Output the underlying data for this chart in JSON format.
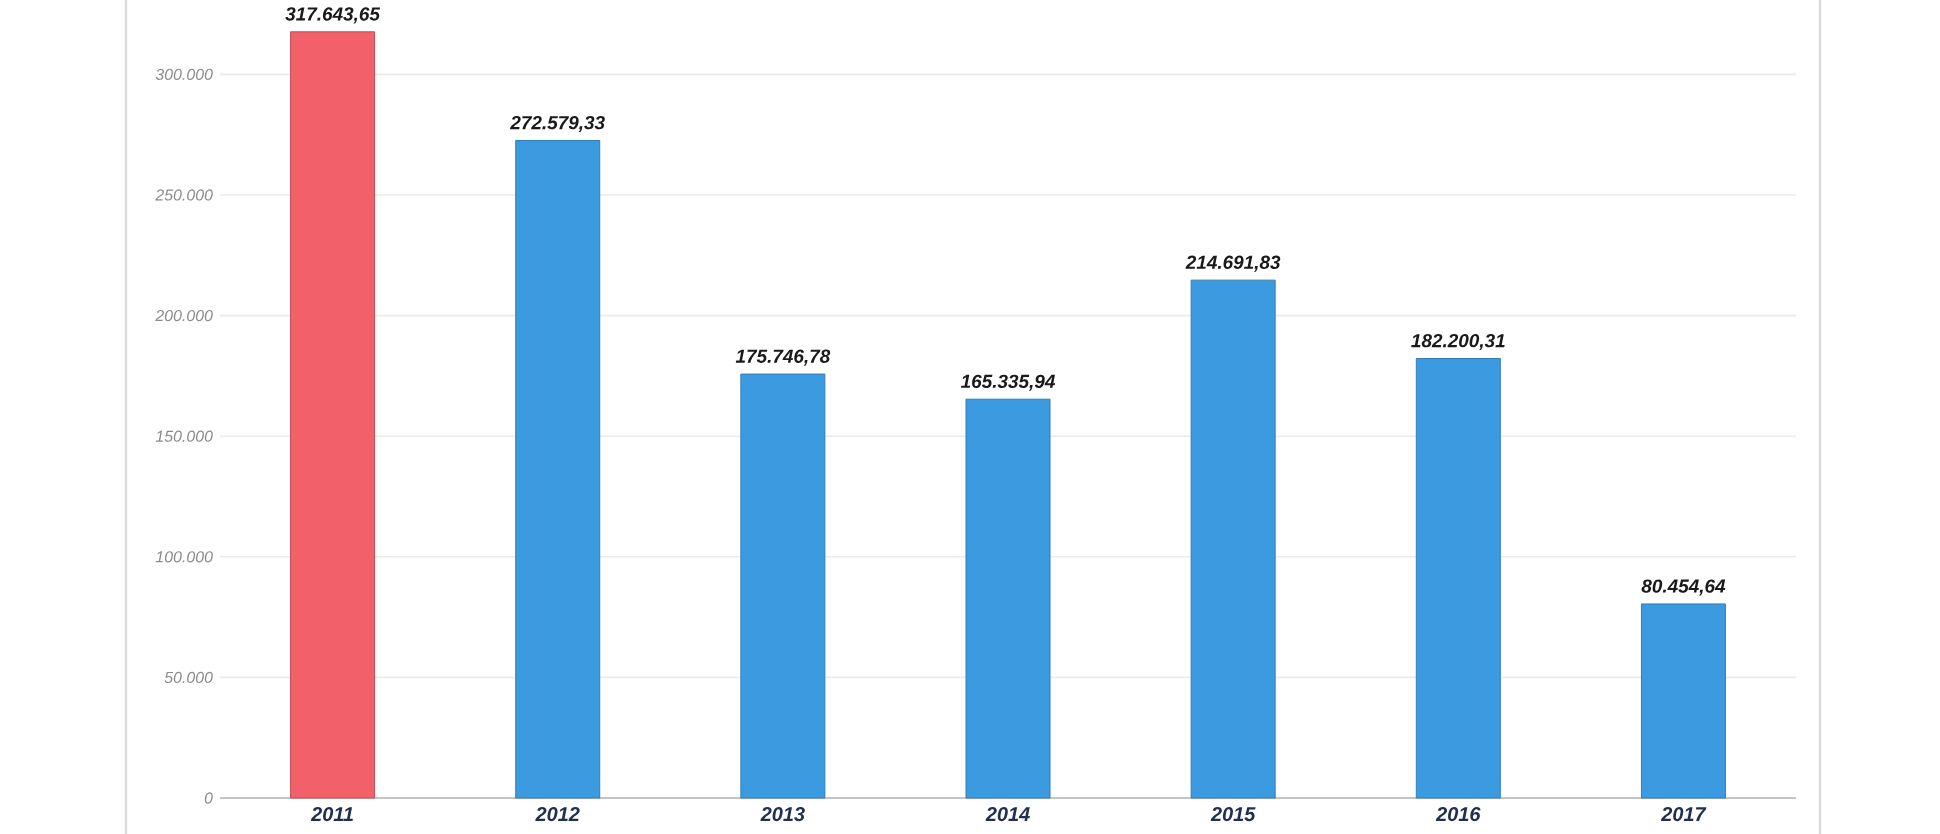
{
  "chart_data": {
    "type": "bar",
    "categories": [
      "2011",
      "2012",
      "2013",
      "2014",
      "2015",
      "2016",
      "2017"
    ],
    "values": [
      317643.65,
      272579.33,
      175746.78,
      165335.94,
      214691.83,
      182200.31,
      80454.64
    ],
    "colors": [
      "#f2606a",
      "#3c9be0",
      "#3c9be0",
      "#3c9be0",
      "#3c9be0",
      "#3c9be0",
      "#3c9be0"
    ],
    "value_labels": [
      "317.643,65",
      "272.579,33",
      "175.746,78",
      "165.335,94",
      "214.691,83",
      "182.200,31",
      "80.454,64"
    ],
    "ylim": [
      0,
      330000
    ],
    "yticks": [
      0,
      {
        "value": 50000,
        "label": "50.000"
      },
      {
        "value": 100000,
        "label": "100.000"
      },
      {
        "value": 150000,
        "label": "150.000"
      },
      {
        "value": 200000,
        "label": "200.000"
      },
      {
        "value": 250000,
        "label": "250.000"
      },
      {
        "value": 300000,
        "label": "300.000"
      }
    ],
    "grid": "y"
  }
}
